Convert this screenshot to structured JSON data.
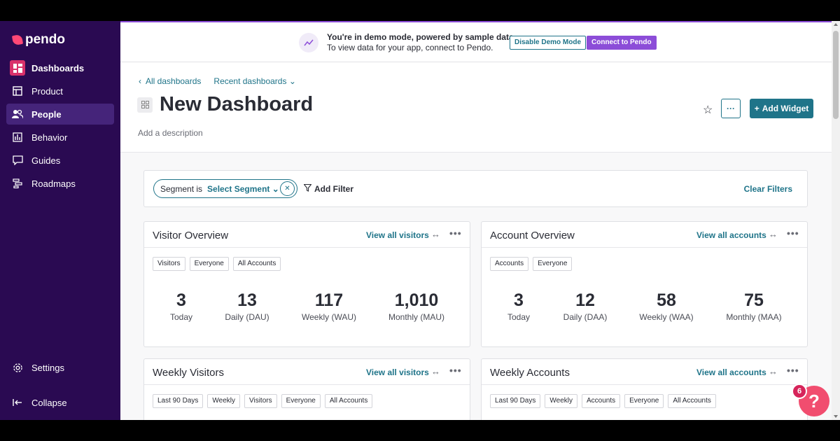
{
  "brand": {
    "name": "pendo",
    "accent": "#ff4876",
    "sidebar_bg": "#2a0a52",
    "link_color": "#1f7489",
    "purple": "#8c4dd8"
  },
  "sidebar": {
    "items": [
      {
        "label": "Dashboards",
        "icon": "dashboard-icon"
      },
      {
        "label": "Product",
        "icon": "layout-icon"
      },
      {
        "label": "People",
        "icon": "people-icon"
      },
      {
        "label": "Behavior",
        "icon": "bar-chart-icon"
      },
      {
        "label": "Guides",
        "icon": "message-icon"
      },
      {
        "label": "Roadmaps",
        "icon": "roadmap-icon"
      }
    ],
    "settings_label": "Settings",
    "collapse_label": "Collapse"
  },
  "banner": {
    "line1": "You're in demo mode, powered by sample data.",
    "line2": "To view data for your app, connect to Pendo.",
    "disable_label": "Disable Demo Mode",
    "connect_label": "Connect to Pendo"
  },
  "header": {
    "back_label": "All dashboards",
    "recent_label": "Recent dashboards",
    "title": "New Dashboard",
    "description_placeholder": "Add a description",
    "more_label": "···",
    "add_widget_label": "Add Widget"
  },
  "filters": {
    "segment_label": "Segment is",
    "segment_value": "Select Segment",
    "add_filter_label": "Add Filter",
    "clear_label": "Clear Filters"
  },
  "cards": {
    "visitor_overview": {
      "title": "Visitor Overview",
      "link": "View all visitors",
      "chips": [
        "Visitors",
        "Everyone",
        "All Accounts"
      ],
      "stats": [
        {
          "value": "3",
          "label": "Today"
        },
        {
          "value": "13",
          "label": "Daily (DAU)"
        },
        {
          "value": "117",
          "label": "Weekly (WAU)"
        },
        {
          "value": "1,010",
          "label": "Monthly (MAU)"
        }
      ]
    },
    "account_overview": {
      "title": "Account Overview",
      "link": "View all accounts",
      "chips": [
        "Accounts",
        "Everyone"
      ],
      "stats": [
        {
          "value": "3",
          "label": "Today"
        },
        {
          "value": "12",
          "label": "Daily (DAA)"
        },
        {
          "value": "58",
          "label": "Weekly (WAA)"
        },
        {
          "value": "75",
          "label": "Monthly (MAA)"
        }
      ]
    },
    "weekly_visitors": {
      "title": "Weekly Visitors",
      "link": "View all visitors",
      "chips": [
        "Last 90 Days",
        "Weekly",
        "Visitors",
        "Everyone",
        "All Accounts"
      ]
    },
    "weekly_accounts": {
      "title": "Weekly Accounts",
      "link": "View all accounts",
      "chips": [
        "Last 90 Days",
        "Weekly",
        "Accounts",
        "Everyone",
        "All Accounts"
      ]
    }
  },
  "help": {
    "badge_count": "6",
    "label": "?"
  }
}
